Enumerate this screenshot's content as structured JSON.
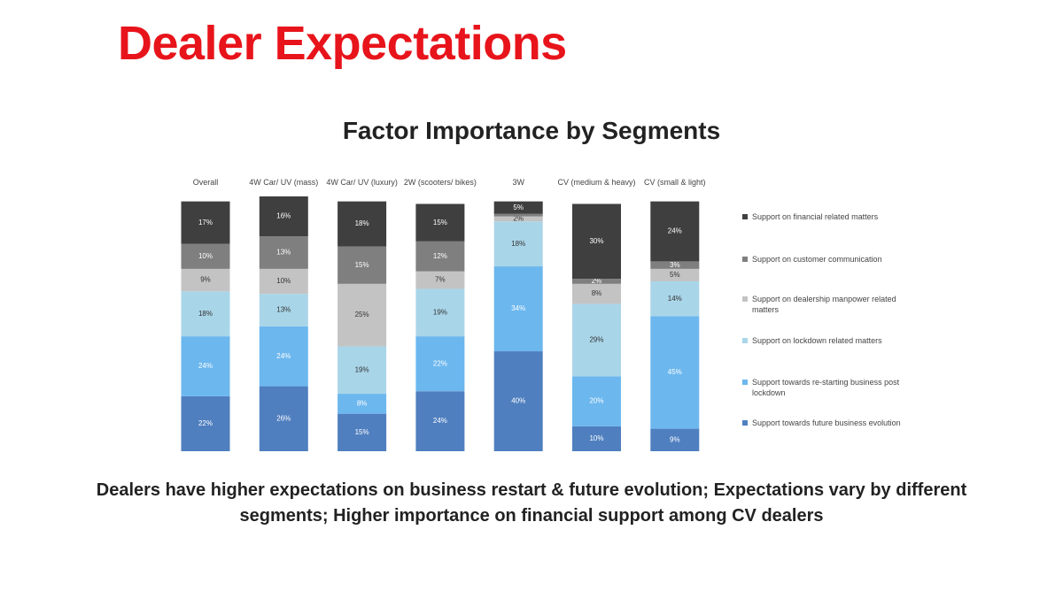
{
  "title": "Dealer Expectations",
  "footnote": "Dealers have higher expectations on business restart & future evolution; Expectations vary by different segments; Higher importance on financial support among CV dealers",
  "chart_data": {
    "type": "stacked-bar",
    "title": "Factor Importance by Segments",
    "categories": [
      "Overall",
      "4W Car/ UV (mass)",
      "4W Car/ UV (luxury)",
      "2W (scooters/ bikes)",
      "3W",
      "CV (medium & heavy)",
      "CV (small & light)"
    ],
    "ylim": [
      0,
      102
    ],
    "series": [
      {
        "name": "Support towards future business evolution",
        "color": "#4f7fbf",
        "values": [
          22,
          26,
          15,
          24,
          40,
          10,
          9
        ],
        "value_labels": [
          "22%",
          "26%",
          "15%",
          "24%",
          "40%",
          "10%",
          "9%"
        ]
      },
      {
        "name": "Support towards re-starting business post lockdown",
        "color": "#6cb7ee",
        "values": [
          24,
          24,
          8,
          22,
          34,
          20,
          45
        ],
        "value_labels": [
          "24%",
          "24%",
          "8%",
          "22%",
          "34%",
          "20%",
          "45%"
        ]
      },
      {
        "name": "Support on lockdown related matters",
        "color": "#a9d5e8",
        "values": [
          18,
          13,
          19,
          19,
          18,
          29,
          14
        ],
        "value_labels": [
          "18%",
          "13%",
          "19%",
          "19%",
          "18%",
          "29%",
          "14%"
        ]
      },
      {
        "name": "Support on dealership manpower related matters",
        "color": "#c3c3c3",
        "values": [
          9,
          10,
          25,
          7,
          2,
          8,
          5
        ],
        "value_labels": [
          "9%",
          "10%",
          "25%",
          "7%",
          "2%",
          "8%",
          "5%"
        ]
      },
      {
        "name": "Support on customer communication",
        "color": "#7f7f7f",
        "values": [
          10,
          13,
          15,
          12,
          1,
          2,
          3
        ],
        "value_labels": [
          "10%",
          "13%",
          "15%",
          "12%",
          null,
          "2%",
          "3%"
        ]
      },
      {
        "name": "Support on financial related matters",
        "color": "#3f3f3f",
        "values": [
          17,
          16,
          18,
          15,
          5,
          30,
          24
        ],
        "value_labels": [
          "17%",
          "16%",
          "18%",
          "15%",
          "5%",
          "30%",
          "24%"
        ]
      }
    ]
  }
}
